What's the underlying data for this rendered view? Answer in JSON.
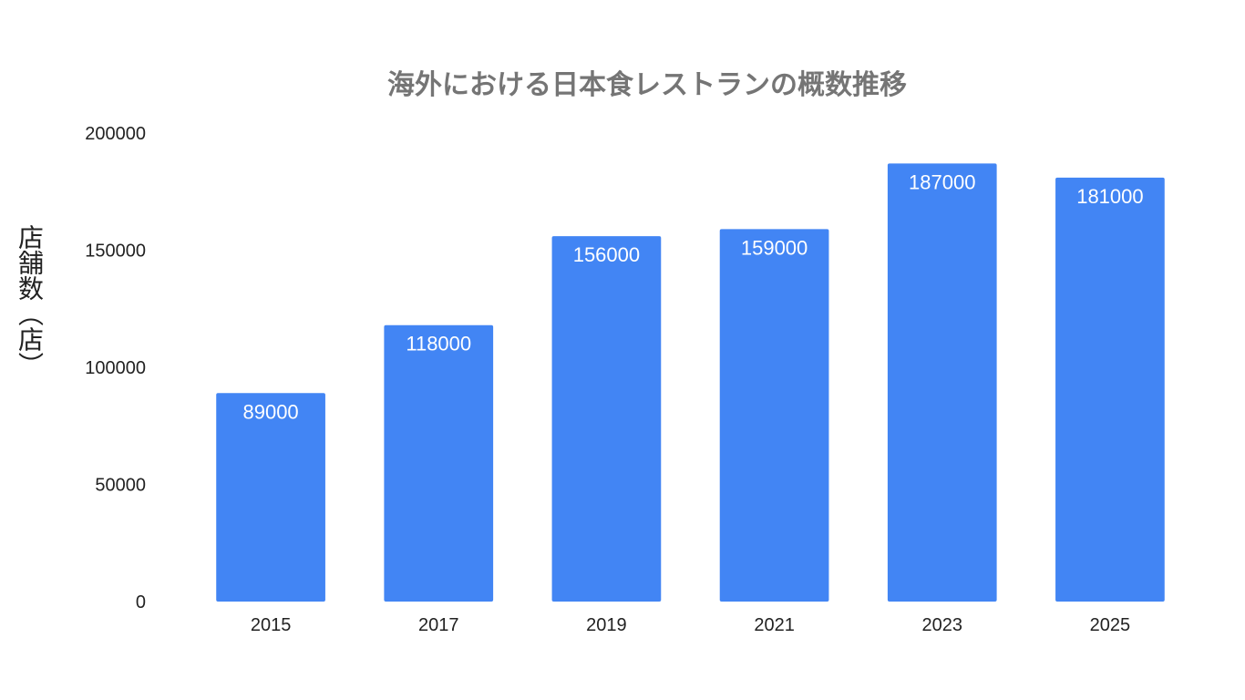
{
  "chart_data": {
    "type": "bar",
    "title": "海外における日本食レストランの概数推移",
    "ylabel": "店舗数（店）",
    "xlabel": "",
    "categories": [
      "2015",
      "2017",
      "2019",
      "2021",
      "2023",
      "2025"
    ],
    "series": [
      {
        "values": [
          89000,
          118000,
          156000,
          159000,
          187000,
          181000
        ]
      }
    ],
    "data_labels": [
      "89000",
      "118000",
      "156000",
      "159000",
      "187000",
      "181000"
    ],
    "ylim": [
      0,
      200000
    ],
    "yticks": [
      "0",
      "50000",
      "100000",
      "150000",
      "200000"
    ],
    "grid": false,
    "legend": "none",
    "colors": {
      "bar": "#4285f4",
      "title": "#757575",
      "axis_text": "#222222"
    }
  }
}
